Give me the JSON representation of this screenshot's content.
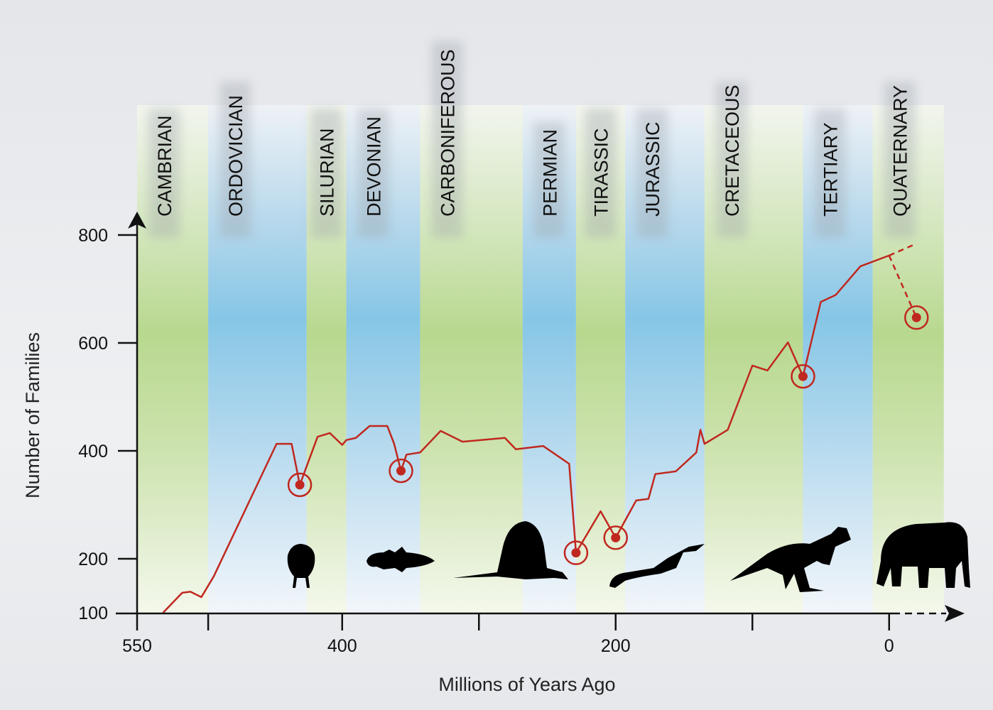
{
  "chart_data": {
    "type": "line",
    "title": "",
    "xlabel": "Millions of Years Ago",
    "ylabel": "Number of Families",
    "xlim": [
      550,
      -40
    ],
    "ylim": [
      100,
      800
    ],
    "x_reversed": true,
    "x_ticks": [
      550,
      498,
      400,
      300,
      200,
      100,
      0
    ],
    "x_tick_labels": [
      "550",
      "",
      "400",
      "",
      "200",
      "",
      "0"
    ],
    "y_ticks": [
      100,
      200,
      400,
      600,
      800
    ],
    "y_tick_labels": [
      "100",
      "200",
      "400",
      "600",
      "800"
    ],
    "periods": [
      {
        "name": "CAMBRIAN",
        "start": 550,
        "end": 498,
        "color": "green"
      },
      {
        "name": "ORDOVICIAN",
        "start": 498,
        "end": 426,
        "color": "blue"
      },
      {
        "name": "SILURIAN",
        "start": 426,
        "end": 397,
        "color": "green"
      },
      {
        "name": "DEVONIAN",
        "start": 397,
        "end": 343,
        "color": "blue"
      },
      {
        "name": "CARBONIFEROUS",
        "start": 343,
        "end": 268,
        "color": "green"
      },
      {
        "name": "PERMIAN",
        "start": 268,
        "end": 229,
        "color": "blue"
      },
      {
        "name": "TIRASSIC",
        "start": 229,
        "end": 193,
        "color": "green"
      },
      {
        "name": "JURASSIC",
        "start": 193,
        "end": 135,
        "color": "blue"
      },
      {
        "name": "CRETACEOUS",
        "start": 135,
        "end": 63,
        "color": "green"
      },
      {
        "name": "TERTIARY",
        "start": 63,
        "end": 12,
        "color": "blue"
      },
      {
        "name": "QUATERNARY",
        "start": 12,
        "end": -40,
        "color": "green"
      }
    ],
    "series": [
      {
        "x": [
          531,
          517,
          511,
          503,
          494,
          448,
          437,
          431,
          418,
          409,
          400,
          397,
          390,
          380,
          367,
          362,
          357,
          353,
          343,
          328,
          312,
          281,
          273,
          253,
          234,
          229,
          211,
          200,
          185,
          176,
          171,
          156,
          141,
          138,
          135,
          118,
          100,
          89,
          74,
          63,
          50,
          39,
          21,
          0
        ],
        "y": [
          100,
          137,
          139,
          129,
          167,
          413,
          413,
          337,
          426,
          433,
          411,
          420,
          424,
          446,
          446,
          413,
          363,
          393,
          397,
          437,
          417,
          424,
          403,
          409,
          376,
          211,
          288,
          239,
          308,
          311,
          357,
          362,
          397,
          439,
          413,
          439,
          558,
          549,
          601,
          538,
          676,
          689,
          742,
          762
        ]
      }
    ],
    "projections": [
      {
        "x": [
          0,
          -20
        ],
        "y": [
          762,
          784
        ],
        "style": "dashed"
      },
      {
        "x": [
          0,
          -20
        ],
        "y": [
          762,
          647
        ],
        "style": "dashed"
      }
    ],
    "extinction_events": [
      {
        "x": 431,
        "y": 337
      },
      {
        "x": 357,
        "y": 363
      },
      {
        "x": 229,
        "y": 211
      },
      {
        "x": 200,
        "y": 239
      },
      {
        "x": 63,
        "y": 538
      },
      {
        "x": -20,
        "y": 647
      }
    ],
    "colors": {
      "line": "#c0281f",
      "green_band": "#b8d88e",
      "blue_band": "#86c6e6",
      "axis": "#111111"
    },
    "silhouettes": [
      "trilobite-icon",
      "coelacanth-icon",
      "dimetrodon-icon",
      "plesiosaur-icon",
      "theropod-dinosaur-icon",
      "elephant-icon"
    ],
    "grid": false,
    "legend": "none"
  }
}
